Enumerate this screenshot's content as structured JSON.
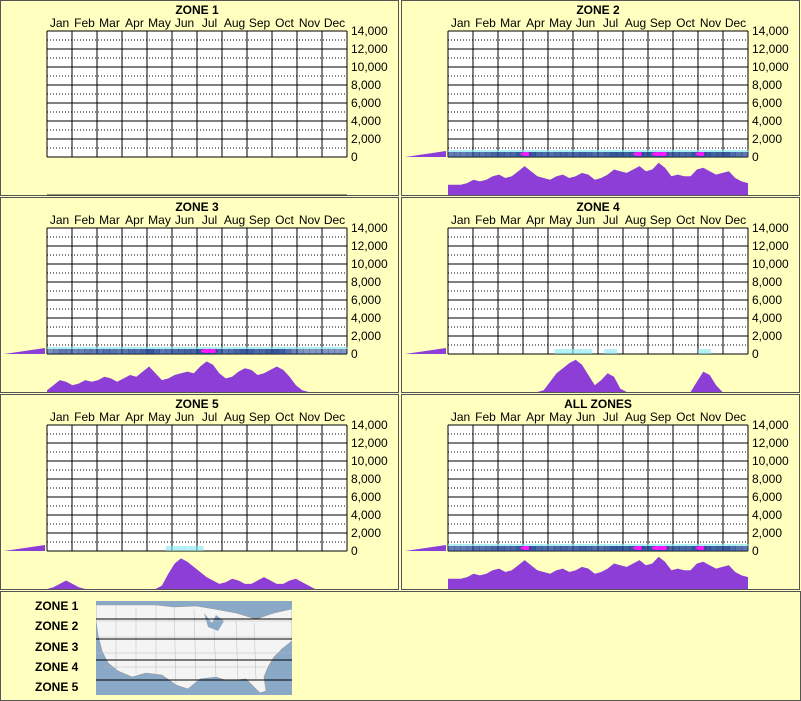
{
  "months": [
    "Jan",
    "Feb",
    "Mar",
    "Apr",
    "May",
    "Jun",
    "Jul",
    "Aug",
    "Sep",
    "Oct",
    "Nov",
    "Dec"
  ],
  "y_ticks": [
    "14,000",
    "12,000",
    "10,000",
    "8,000",
    "6,000",
    "4,000",
    "2,000",
    "0"
  ],
  "legend_zones": [
    "ZONE 1",
    "ZONE 2",
    "ZONE 3",
    "ZONE 4",
    "ZONE 5"
  ],
  "colors": {
    "background": "#ffffc0",
    "profile": "#8c3ed6",
    "band_blue": "#1c3f8c",
    "band_cyan": "#7ce6ef",
    "band_magenta": "#ff19ff",
    "map_water": "#8aa9c7",
    "map_land": "#f4f4f4"
  },
  "chart_data": [
    {
      "type": "heatmap",
      "title": "ZONE 1",
      "x_categories": [
        "Jan",
        "Feb",
        "Mar",
        "Apr",
        "May",
        "Jun",
        "Jul",
        "Aug",
        "Sep",
        "Oct",
        "Nov",
        "Dec"
      ],
      "ylim": [
        0,
        14000
      ],
      "y_ticks": [
        0,
        2000,
        4000,
        6000,
        8000,
        10000,
        12000,
        14000
      ],
      "grid": true,
      "band": "none",
      "side_bar": false,
      "profile": [
        0,
        0,
        0,
        0,
        0,
        0,
        0,
        0,
        0,
        0,
        0,
        0,
        0,
        0,
        0,
        0,
        0,
        0,
        0,
        0,
        0,
        0,
        0,
        0,
        0,
        0,
        0,
        0,
        0,
        0,
        0,
        0,
        0,
        0,
        0,
        0,
        0,
        0,
        0,
        0,
        0,
        0,
        0,
        0,
        0,
        0,
        0,
        0
      ]
    },
    {
      "type": "heatmap",
      "title": "ZONE 2",
      "x_categories": [
        "Jan",
        "Feb",
        "Mar",
        "Apr",
        "May",
        "Jun",
        "Jul",
        "Aug",
        "Sep",
        "Oct",
        "Nov",
        "Dec"
      ],
      "ylim": [
        0,
        14000
      ],
      "y_ticks": [
        0,
        2000,
        4000,
        6000,
        8000,
        10000,
        12000,
        14000
      ],
      "grid": true,
      "band": "strong",
      "side_bar": true,
      "profile": [
        0.3,
        0.3,
        0.3,
        0.35,
        0.45,
        0.4,
        0.45,
        0.55,
        0.6,
        0.5,
        0.55,
        0.7,
        0.85,
        0.7,
        0.55,
        0.5,
        0.45,
        0.55,
        0.6,
        0.5,
        0.55,
        0.65,
        0.6,
        0.45,
        0.5,
        0.6,
        0.75,
        0.7,
        0.65,
        0.75,
        0.85,
        0.7,
        0.75,
        0.95,
        0.8,
        0.55,
        0.6,
        0.55,
        0.55,
        0.75,
        0.8,
        0.7,
        0.6,
        0.65,
        0.7,
        0.5,
        0.4,
        0.35
      ]
    },
    {
      "type": "heatmap",
      "title": "ZONE 3",
      "x_categories": [
        "Jan",
        "Feb",
        "Mar",
        "Apr",
        "May",
        "Jun",
        "Jul",
        "Aug",
        "Sep",
        "Oct",
        "Nov",
        "Dec"
      ],
      "ylim": [
        0,
        14000
      ],
      "y_ticks": [
        0,
        2000,
        4000,
        6000,
        8000,
        10000,
        12000,
        14000
      ],
      "grid": true,
      "band": "strong",
      "side_bar": true,
      "profile": [
        0.05,
        0.2,
        0.35,
        0.3,
        0.2,
        0.25,
        0.35,
        0.3,
        0.35,
        0.45,
        0.4,
        0.3,
        0.4,
        0.5,
        0.45,
        0.6,
        0.75,
        0.55,
        0.35,
        0.4,
        0.5,
        0.55,
        0.6,
        0.55,
        0.75,
        0.9,
        0.8,
        0.55,
        0.4,
        0.45,
        0.6,
        0.7,
        0.65,
        0.5,
        0.55,
        0.65,
        0.75,
        0.65,
        0.45,
        0.2,
        0.05,
        0,
        0,
        0,
        0,
        0,
        0,
        0
      ]
    },
    {
      "type": "heatmap",
      "title": "ZONE 4",
      "x_categories": [
        "Jan",
        "Feb",
        "Mar",
        "Apr",
        "May",
        "Jun",
        "Jul",
        "Aug",
        "Sep",
        "Oct",
        "Nov",
        "Dec"
      ],
      "ylim": [
        0,
        14000
      ],
      "y_ticks": [
        0,
        2000,
        4000,
        6000,
        8000,
        10000,
        12000,
        14000
      ],
      "grid": true,
      "band": "faint",
      "side_bar": true,
      "profile": [
        0,
        0,
        0,
        0,
        0,
        0,
        0,
        0,
        0,
        0,
        0,
        0,
        0,
        0,
        0,
        0.05,
        0.3,
        0.55,
        0.7,
        0.85,
        0.95,
        0.8,
        0.5,
        0.2,
        0.35,
        0.55,
        0.45,
        0.1,
        0,
        0,
        0,
        0,
        0,
        0,
        0,
        0,
        0,
        0,
        0,
        0.3,
        0.6,
        0.5,
        0.2,
        0,
        0,
        0,
        0,
        0
      ]
    },
    {
      "type": "heatmap",
      "title": "ZONE 5",
      "x_categories": [
        "Jan",
        "Feb",
        "Mar",
        "Apr",
        "May",
        "Jun",
        "Jul",
        "Aug",
        "Sep",
        "Oct",
        "Nov",
        "Dec"
      ],
      "ylim": [
        0,
        14000
      ],
      "y_ticks": [
        0,
        2000,
        4000,
        6000,
        8000,
        10000,
        12000,
        14000
      ],
      "grid": true,
      "band": "faint",
      "side_bar": true,
      "profile": [
        0,
        0.05,
        0.15,
        0.25,
        0.15,
        0.05,
        0,
        0,
        0,
        0,
        0,
        0,
        0,
        0,
        0,
        0,
        0,
        0,
        0.1,
        0.45,
        0.75,
        0.9,
        0.8,
        0.65,
        0.5,
        0.35,
        0.25,
        0.15,
        0.2,
        0.3,
        0.25,
        0.15,
        0.15,
        0.25,
        0.35,
        0.25,
        0.15,
        0.15,
        0.25,
        0.3,
        0.2,
        0.1,
        0,
        0,
        0,
        0,
        0,
        0
      ]
    },
    {
      "type": "heatmap",
      "title": "ALL ZONES",
      "x_categories": [
        "Jan",
        "Feb",
        "Mar",
        "Apr",
        "May",
        "Jun",
        "Jul",
        "Aug",
        "Sep",
        "Oct",
        "Nov",
        "Dec"
      ],
      "ylim": [
        0,
        14000
      ],
      "y_ticks": [
        0,
        2000,
        4000,
        6000,
        8000,
        10000,
        12000,
        14000
      ],
      "grid": true,
      "band": "strong",
      "side_bar": true,
      "profile": [
        0.3,
        0.3,
        0.3,
        0.35,
        0.45,
        0.4,
        0.45,
        0.55,
        0.6,
        0.5,
        0.55,
        0.7,
        0.85,
        0.7,
        0.55,
        0.5,
        0.45,
        0.55,
        0.6,
        0.5,
        0.55,
        0.65,
        0.6,
        0.45,
        0.5,
        0.6,
        0.75,
        0.7,
        0.65,
        0.75,
        0.85,
        0.7,
        0.75,
        0.95,
        0.8,
        0.55,
        0.6,
        0.55,
        0.55,
        0.75,
        0.8,
        0.7,
        0.6,
        0.65,
        0.7,
        0.5,
        0.4,
        0.35
      ]
    }
  ]
}
